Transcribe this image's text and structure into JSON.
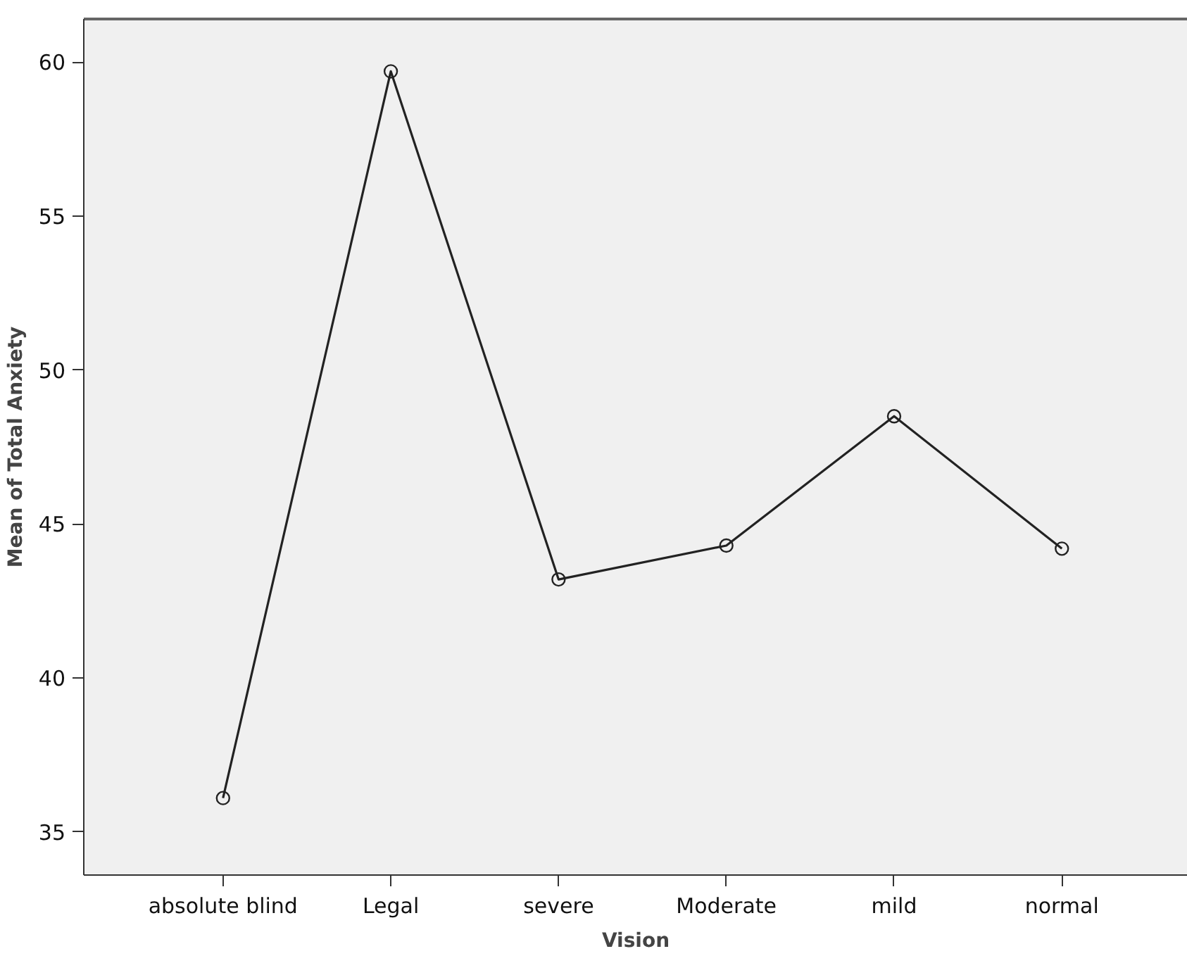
{
  "chart_data": {
    "type": "line",
    "xlabel": "Vision",
    "ylabel": "Mean of Total Anxiety",
    "categories": [
      "absolute blind",
      "Legal",
      "severe",
      "Moderate",
      "mild",
      "normal"
    ],
    "series": [
      {
        "color": "#222222",
        "values": [
          36.1,
          59.7,
          43.2,
          44.3,
          48.5,
          44.2
        ]
      }
    ],
    "ylim": [
      33.6,
      61.4
    ],
    "yticks": [
      35,
      40,
      45,
      50,
      55,
      60
    ],
    "marker": "circle",
    "line_style": "solid"
  }
}
